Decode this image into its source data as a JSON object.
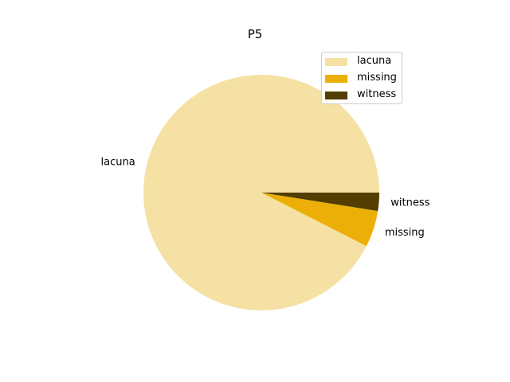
{
  "chart_data": {
    "type": "pie",
    "title": "P5",
    "slices": [
      {
        "label": "lacuna",
        "value": 92.5,
        "color": "#f5e1a4"
      },
      {
        "label": "missing",
        "value": 5.0,
        "color": "#ecaf07"
      },
      {
        "label": "witness",
        "value": 2.5,
        "color": "#533e00"
      }
    ],
    "legend": {
      "position": "top-right",
      "entries": [
        "lacuna",
        "missing",
        "witness"
      ]
    }
  }
}
